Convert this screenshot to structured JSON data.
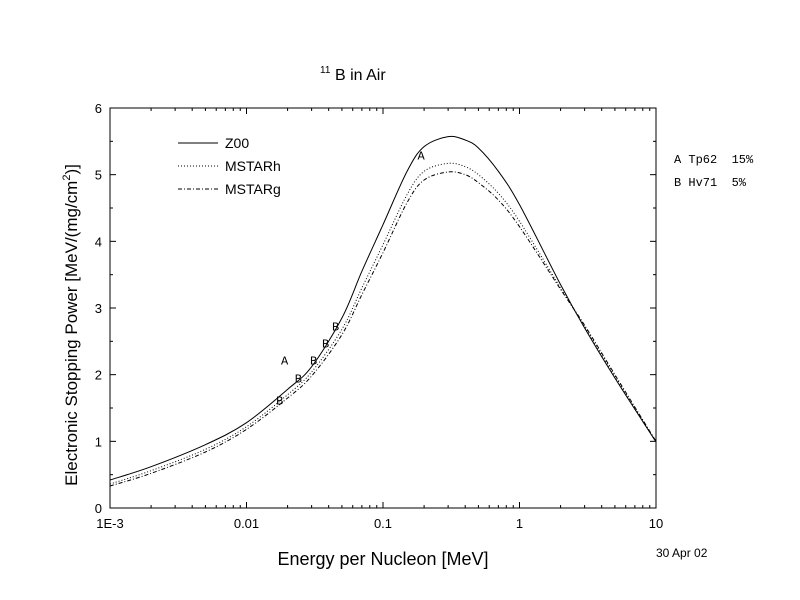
{
  "chart_data": {
    "type": "line",
    "title_sup": "11",
    "title_main": "B in Air",
    "xlabel": "Energy per Nucleon [MeV]",
    "ylabel_main": "Electronic Stopping Power [MeV/(mg/cm",
    "ylabel_sup": "2",
    "ylabel_end": ")]",
    "x_scale": "log",
    "xlim": [
      0.001,
      10
    ],
    "ylim": [
      0,
      6
    ],
    "x_ticks": [
      {
        "value": 0.001,
        "label": "1E-3"
      },
      {
        "value": 0.01,
        "label": "0.01"
      },
      {
        "value": 0.1,
        "label": "0.1"
      },
      {
        "value": 1,
        "label": "1"
      },
      {
        "value": 10,
        "label": "10"
      }
    ],
    "y_ticks": [
      {
        "value": 0,
        "label": "0"
      },
      {
        "value": 1,
        "label": "1"
      },
      {
        "value": 2,
        "label": "2"
      },
      {
        "value": 3,
        "label": "3"
      },
      {
        "value": 4,
        "label": "4"
      },
      {
        "value": 5,
        "label": "5"
      },
      {
        "value": 6,
        "label": "6"
      }
    ],
    "legend_placement": "top-left",
    "series": [
      {
        "name": "Z00",
        "style": "solid",
        "x": [
          0.001,
          0.002,
          0.005,
          0.01,
          0.02,
          0.03,
          0.05,
          0.07,
          0.1,
          0.15,
          0.2,
          0.3,
          0.4,
          0.5,
          0.7,
          1,
          2,
          3,
          5,
          10
        ],
        "y": [
          0.42,
          0.62,
          0.95,
          1.28,
          1.78,
          2.12,
          2.85,
          3.55,
          4.25,
          5.05,
          5.42,
          5.57,
          5.52,
          5.4,
          5.05,
          4.55,
          3.35,
          2.7,
          1.95,
          0.99
        ]
      },
      {
        "name": "MSTARh",
        "style": "dotted",
        "x": [
          0.001,
          0.002,
          0.005,
          0.01,
          0.02,
          0.03,
          0.05,
          0.07,
          0.1,
          0.15,
          0.2,
          0.3,
          0.4,
          0.5,
          0.7,
          1,
          2,
          3,
          5,
          10
        ],
        "y": [
          0.36,
          0.56,
          0.88,
          1.22,
          1.7,
          2.04,
          2.68,
          3.3,
          3.95,
          4.7,
          5.05,
          5.17,
          5.12,
          5.0,
          4.72,
          4.3,
          3.3,
          2.72,
          1.98,
          1.0
        ]
      },
      {
        "name": "MSTARg",
        "style": "dashdot",
        "x": [
          0.001,
          0.002,
          0.005,
          0.01,
          0.02,
          0.03,
          0.05,
          0.07,
          0.1,
          0.15,
          0.2,
          0.3,
          0.4,
          0.5,
          0.7,
          1,
          2,
          3,
          5,
          10
        ],
        "y": [
          0.33,
          0.52,
          0.84,
          1.18,
          1.65,
          1.98,
          2.6,
          3.2,
          3.83,
          4.58,
          4.92,
          5.04,
          5.0,
          4.88,
          4.62,
          4.22,
          3.28,
          2.74,
          2.0,
          1.0
        ]
      }
    ],
    "markers": [
      {
        "label": "A",
        "x": 0.019,
        "y": 2.23
      },
      {
        "label": "A",
        "x": 0.19,
        "y": 5.3
      },
      {
        "label": "B",
        "x": 0.0175,
        "y": 1.63
      },
      {
        "label": "B",
        "x": 0.024,
        "y": 1.96
      },
      {
        "label": "B",
        "x": 0.031,
        "y": 2.23
      },
      {
        "label": "B",
        "x": 0.038,
        "y": 2.48
      },
      {
        "label": "B",
        "x": 0.045,
        "y": 2.74
      }
    ],
    "annotations": [
      "A Tp62  15%",
      "B Hv71  5%"
    ],
    "date_stamp": "30 Apr 02"
  }
}
